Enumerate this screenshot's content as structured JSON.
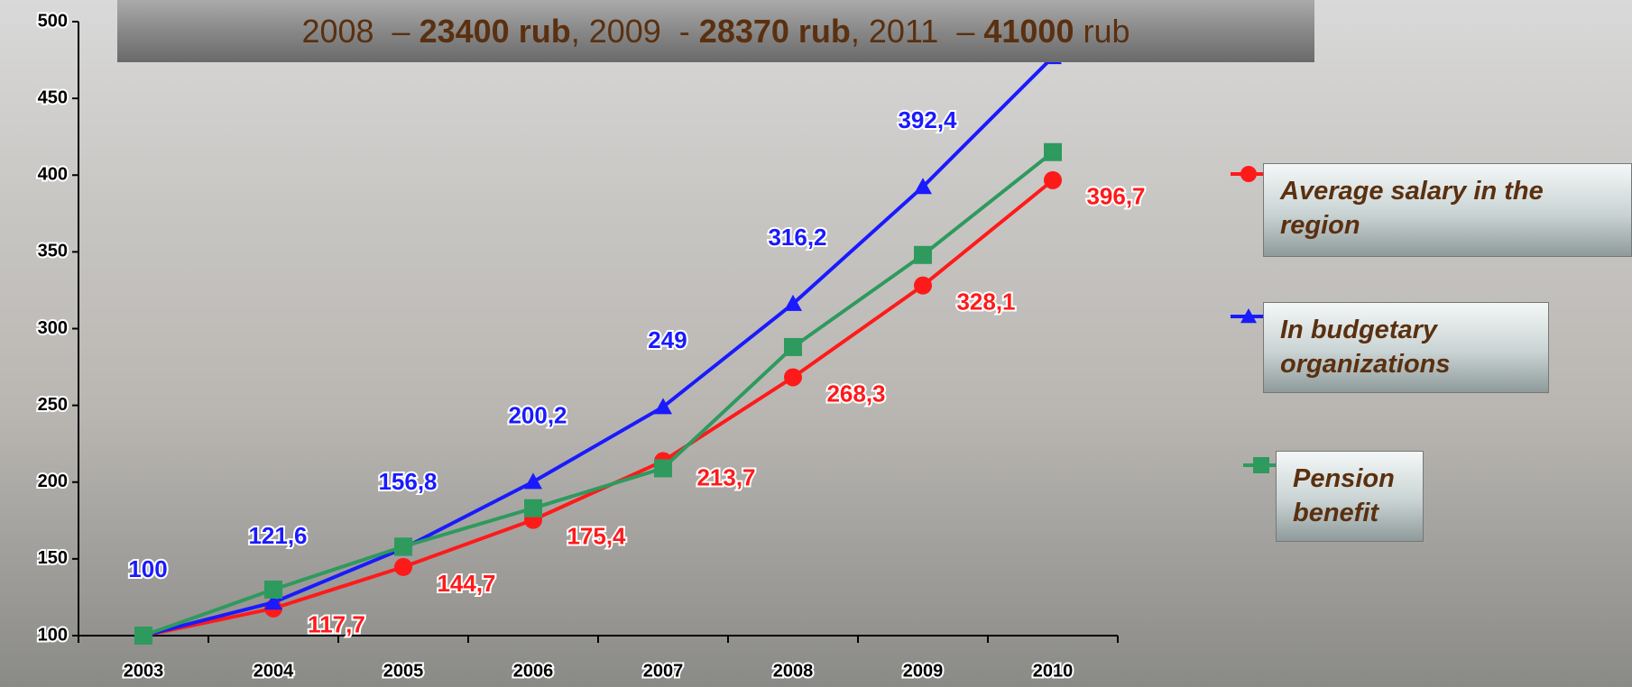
{
  "chart_data": {
    "type": "line",
    "title": [
      {
        "text": "2008  – ",
        "bold": false
      },
      {
        "text": "23400 rub",
        "bold": true
      },
      {
        "text": ", 2009  - ",
        "bold": false
      },
      {
        "text": "28370 rub",
        "bold": true
      },
      {
        "text": ", 2011  – ",
        "bold": false
      },
      {
        "text": "41000",
        "bold": true
      },
      {
        "text": " rub",
        "bold": false
      }
    ],
    "categories": [
      "2003",
      "2004",
      "2005",
      "2006",
      "2007",
      "2008",
      "2009",
      "2010"
    ],
    "ylim": [
      100,
      500
    ],
    "yticks": [
      100,
      150,
      200,
      250,
      300,
      350,
      400,
      450,
      500
    ],
    "legend": "right",
    "series": [
      {
        "name": "Average salary in the region",
        "color": "#ff1a1a",
        "marker": "circle",
        "values": [
          100,
          117.7,
          144.7,
          175.4,
          213.7,
          268.3,
          328.1,
          396.7
        ],
        "value_labels": [
          null,
          "117,7",
          "144,7",
          "175,4",
          "213,7",
          "268,3",
          "328,1",
          "396,7"
        ]
      },
      {
        "name": "In budgetary organizations",
        "color": "#1a1aff",
        "marker": "triangle",
        "values": [
          100,
          121.6,
          156.8,
          200.2,
          249,
          316.2,
          392.4,
          477
        ],
        "value_labels": [
          "100",
          "121,6",
          "156,8",
          "200,2",
          "249",
          "316,2",
          "392,4",
          null
        ]
      },
      {
        "name": "Pension benefit",
        "color": "#2e9a5e",
        "marker": "square",
        "values": [
          100,
          130,
          158,
          183,
          209,
          288,
          348,
          415
        ]
      }
    ]
  }
}
